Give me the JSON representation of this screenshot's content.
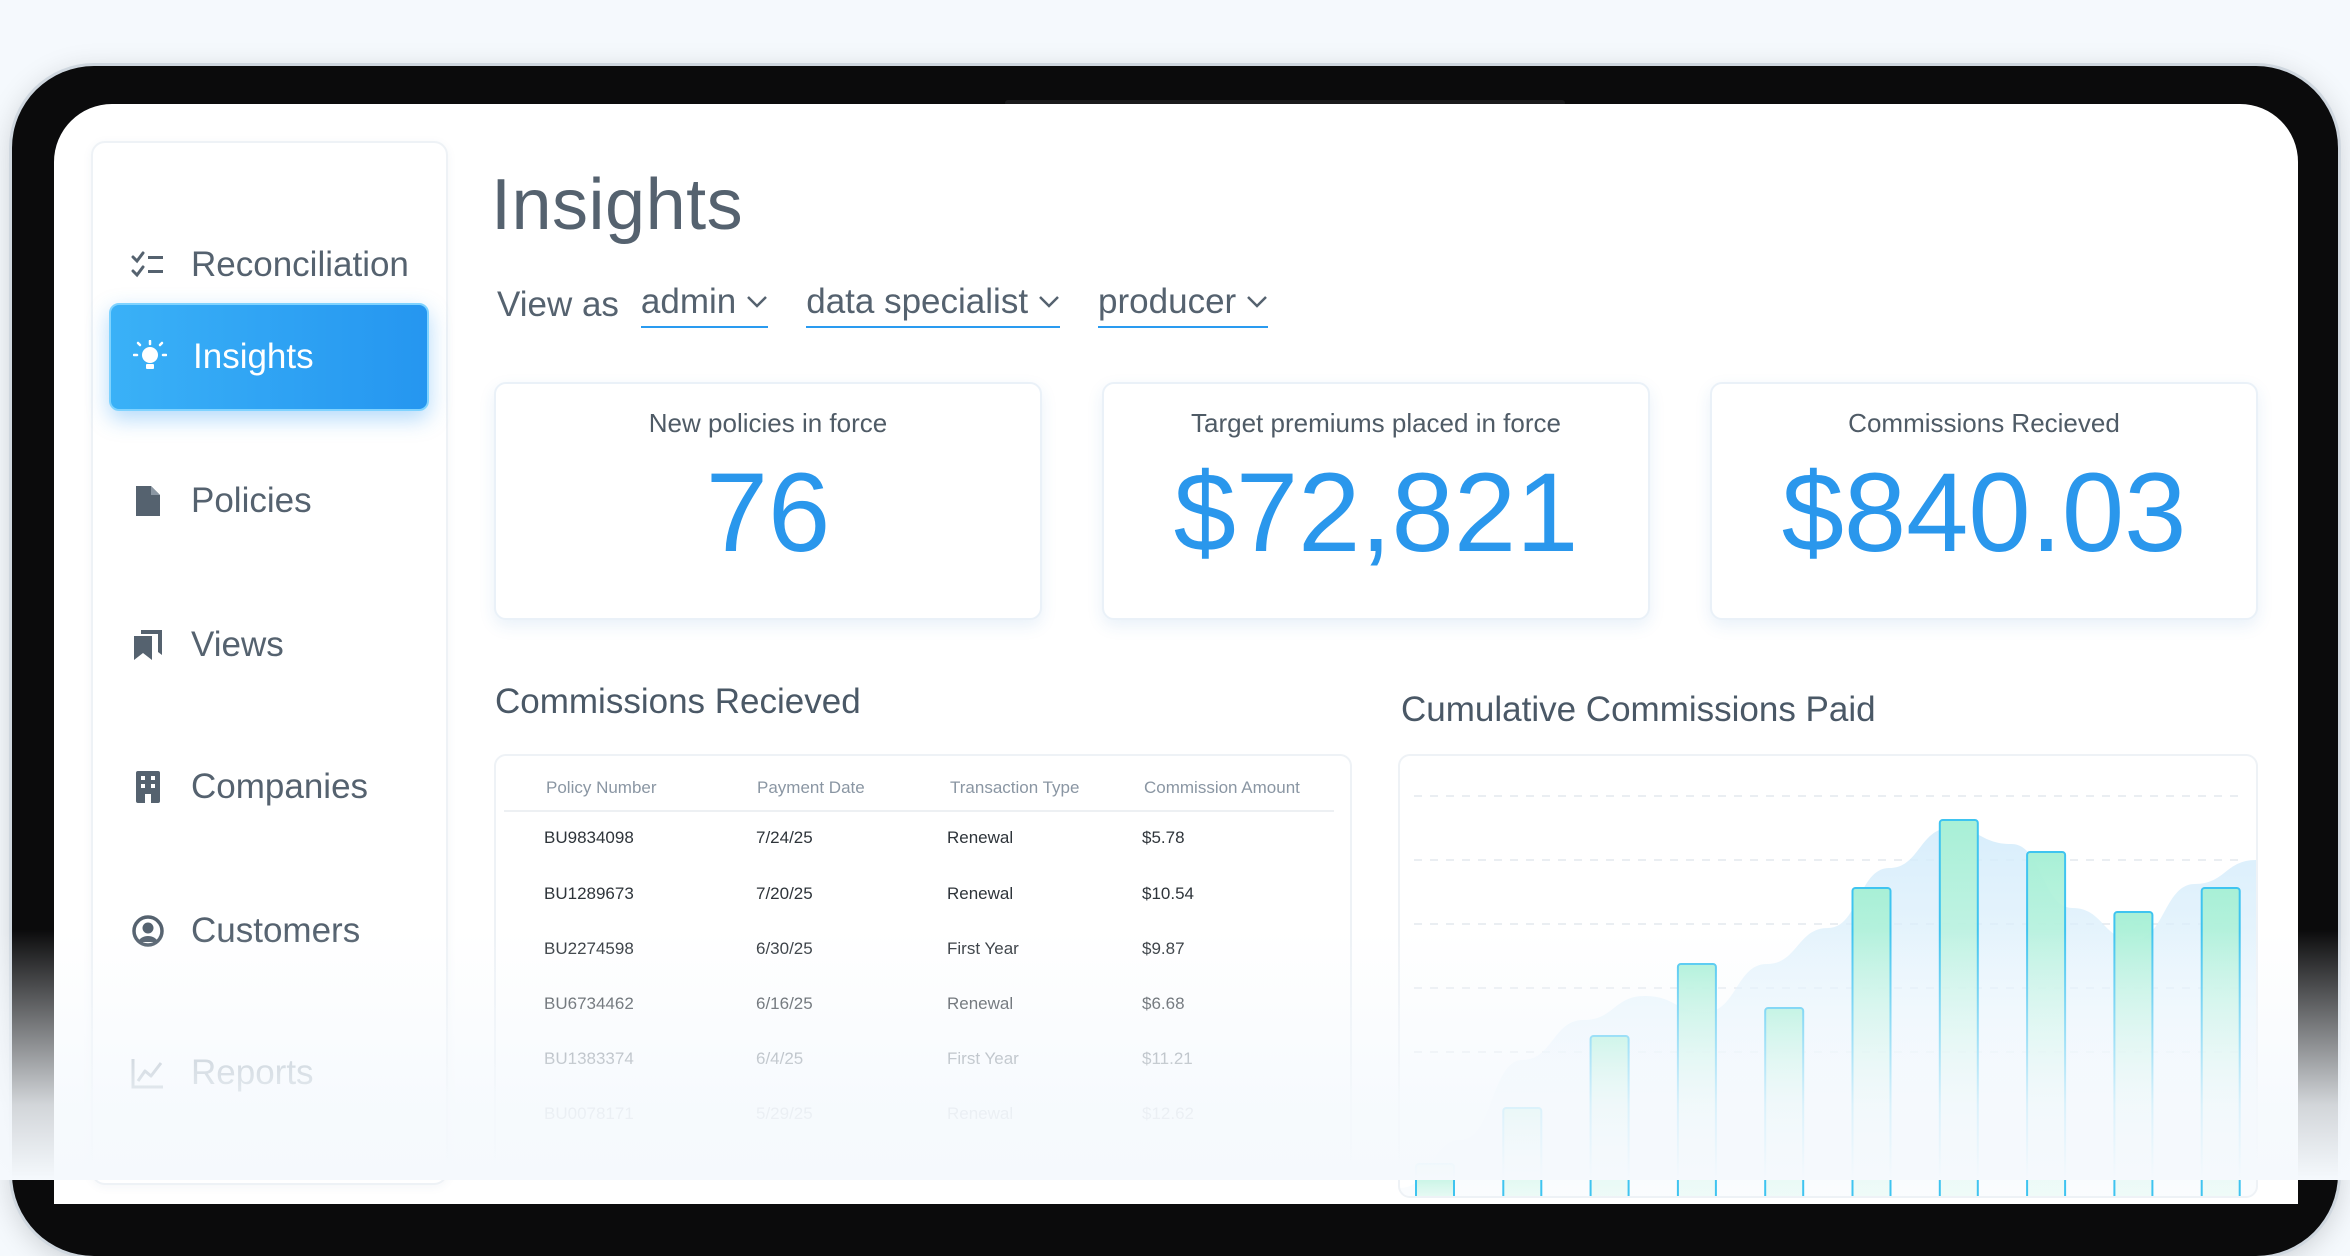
{
  "sidebar": {
    "items": [
      {
        "label": "Reconciliation",
        "icon": "checklist-icon"
      },
      {
        "label": "Insights",
        "icon": "lightbulb-icon"
      },
      {
        "label": "Policies",
        "icon": "document-icon"
      },
      {
        "label": "Views",
        "icon": "bookmarks-icon"
      },
      {
        "label": "Companies",
        "icon": "building-icon"
      },
      {
        "label": "Customers",
        "icon": "user-circle-icon"
      },
      {
        "label": "Reports",
        "icon": "line-chart-icon"
      }
    ],
    "active_index": 1
  },
  "page": {
    "title": "Insights",
    "view_as_label": "View as",
    "roles": [
      "admin",
      "data specialist",
      "producer"
    ]
  },
  "kpis": [
    {
      "label": "New policies in force",
      "value": "76"
    },
    {
      "label": "Target premiums placed in force",
      "value": "$72,821"
    },
    {
      "label": "Commissions Recieved",
      "value": "$840.03"
    }
  ],
  "commissions_table": {
    "title": "Commissions Recieved",
    "columns": [
      "Policy Number",
      "Payment Date",
      "Transaction Type",
      "Commission Amount"
    ],
    "rows": [
      [
        "BU9834098",
        "7/24/25",
        "Renewal",
        "$5.78"
      ],
      [
        "BU1289673",
        "7/20/25",
        "Renewal",
        "$10.54"
      ],
      [
        "BU2274598",
        "6/30/25",
        "First Year",
        "$9.87"
      ],
      [
        "BU6734462",
        "6/16/25",
        "Renewal",
        "$6.68"
      ],
      [
        "BU1383374",
        "6/4/25",
        "First Year",
        "$11.21"
      ],
      [
        "BU0078171",
        "5/29/25",
        "Renewal",
        "$12.62"
      ]
    ]
  },
  "chart_title": "Cumulative Commissions Paid",
  "colors": {
    "accent": "#2a97ec",
    "bar_fill": "#a8f0d6",
    "bar_stroke": "#3fc4f0",
    "area_fill": "#dbeefb"
  },
  "chart_data": {
    "type": "bar",
    "title": "Cumulative Commissions Paid",
    "xlabel": "",
    "ylabel": "",
    "ylim": [
      0,
      100
    ],
    "grid": true,
    "values": [
      8,
      22,
      40,
      58,
      47,
      77,
      94,
      86,
      71,
      77
    ],
    "area": [
      2,
      14,
      34,
      44,
      50,
      46,
      58,
      67,
      82,
      92,
      88,
      72,
      64,
      78,
      84
    ]
  }
}
